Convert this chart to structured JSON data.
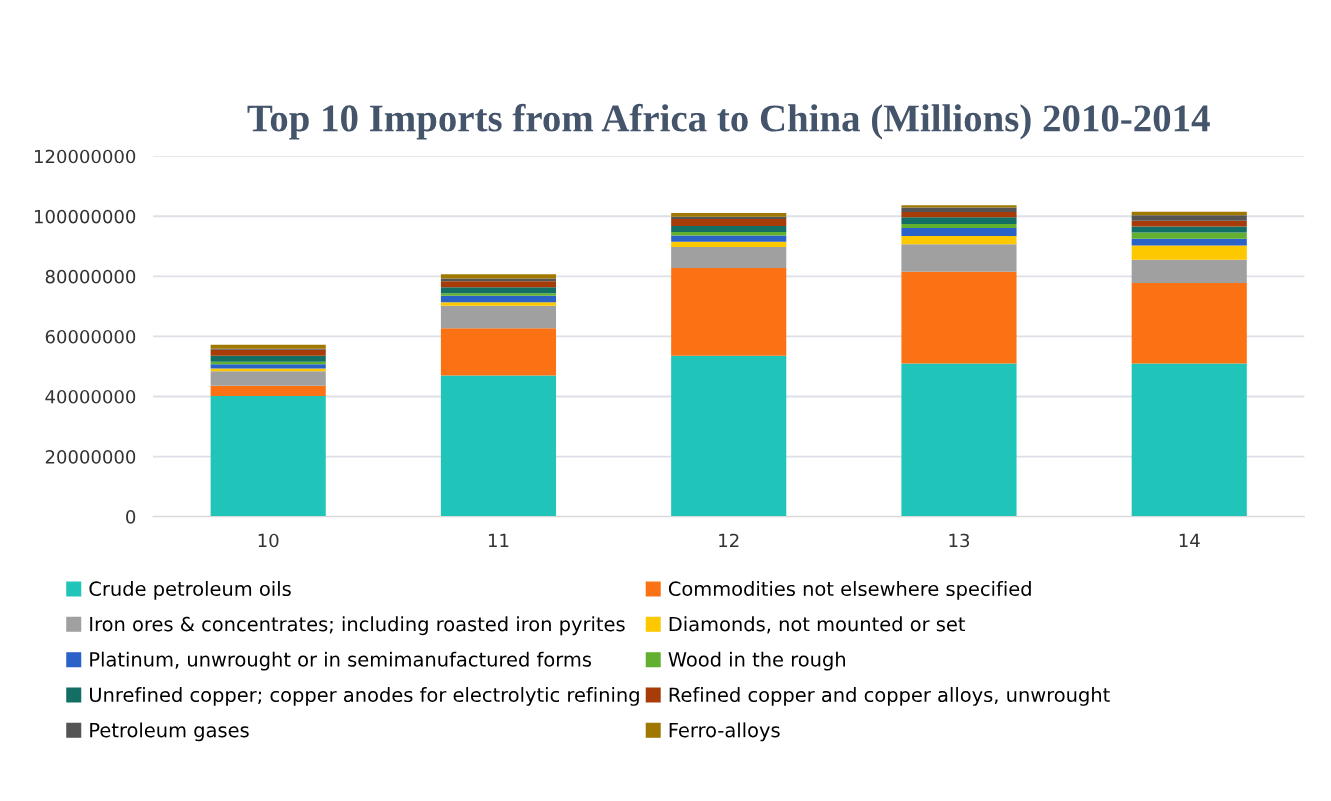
{
  "chart_data": {
    "type": "bar",
    "stacked": true,
    "title": "Top 10 Imports from Africa to China (Millions) 2010-2014",
    "categories": [
      "10",
      "11",
      "12",
      "13",
      "14"
    ],
    "ylim": [
      0,
      120000000
    ],
    "yticks": [
      0,
      20000000,
      40000000,
      60000000,
      80000000,
      100000000,
      120000000
    ],
    "grid": "y",
    "legend": "bottom",
    "series": [
      {
        "name": "Crude petroleum oils",
        "color": "#20c4b8",
        "values": [
          40200000,
          47000000,
          53600000,
          51000000,
          51000000
        ]
      },
      {
        "name": "Commodities not elsewhere specified",
        "color": "#fb7214",
        "values": [
          3400000,
          15700000,
          29200000,
          30500000,
          26800000
        ]
      },
      {
        "name": "Iron ores & concentrates; including roasted iron pyrites",
        "color": "#a0a0a0",
        "values": [
          4800000,
          7500000,
          7000000,
          9200000,
          7700000
        ]
      },
      {
        "name": "Diamonds, not mounted or set",
        "color": "#fdc800",
        "values": [
          900000,
          1200000,
          1700000,
          2700000,
          4800000
        ]
      },
      {
        "name": "Platinum, unwrought or in semimanufactured forms",
        "color": "#2a62c8",
        "values": [
          1400000,
          2100000,
          2100000,
          2700000,
          2200000
        ]
      },
      {
        "name": "Wood in the rough",
        "color": "#62b030",
        "values": [
          900000,
          900000,
          1200000,
          1300000,
          2100000
        ]
      },
      {
        "name": "Unrefined copper; copper anodes for electrolytic refining",
        "color": "#136f64",
        "values": [
          2000000,
          2000000,
          2000000,
          2300000,
          2000000
        ]
      },
      {
        "name": "Refined copper and copper alloys, unwrought",
        "color": "#a83c08",
        "values": [
          2000000,
          2000000,
          2300000,
          1700000,
          1900000
        ]
      },
      {
        "name": "Petroleum gases",
        "color": "#555555",
        "values": [
          300000,
          900000,
          700000,
          1500000,
          1800000
        ]
      },
      {
        "name": "Ferro-alloys",
        "color": "#a07800",
        "values": [
          1300000,
          1400000,
          1300000,
          800000,
          1200000
        ]
      }
    ]
  }
}
